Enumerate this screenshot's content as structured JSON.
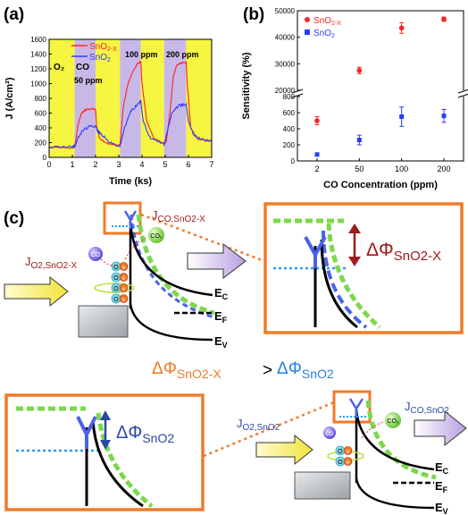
{
  "panels": {
    "a": "(a)",
    "b": "(b)",
    "c": "(c)"
  },
  "colors": {
    "sno2x": "#ff2222",
    "sno2": "#2a3cff",
    "yellow": "#f5f542",
    "purple": "#c8b8e8",
    "orange": "#f07a28",
    "green": "#7cd84a",
    "darkred": "#a01a1a"
  },
  "chart_a": {
    "type": "line",
    "xlabel": "Time (ks)",
    "ylabel": "J (A/cm²)",
    "xlim": [
      0,
      7
    ],
    "ylim": [
      0,
      1600
    ],
    "xticks": [
      "0",
      "1",
      "2",
      "3",
      "4",
      "5",
      "6",
      "7"
    ],
    "yticks": [
      "0",
      "200",
      "400",
      "600",
      "800",
      "1000",
      "1200",
      "1400",
      "1600"
    ],
    "legend": [
      {
        "base": "SnO",
        "sub": "2-X",
        "color": "#ff2222"
      },
      {
        "base": "SnO",
        "sub": "2",
        "color": "#2a3cff"
      }
    ],
    "bands": [
      {
        "start": 0,
        "end": 1.1,
        "gas": "O2"
      },
      {
        "start": 1.1,
        "end": 2.0,
        "gas": "CO"
      },
      {
        "start": 2.0,
        "end": 3.05,
        "gas": "O2"
      },
      {
        "start": 3.05,
        "end": 3.95,
        "gas": "CO"
      },
      {
        "start": 3.95,
        "end": 4.95,
        "gas": "O2"
      },
      {
        "start": 4.95,
        "end": 5.9,
        "gas": "CO"
      },
      {
        "start": 5.9,
        "end": 7.0,
        "gas": "O2"
      }
    ],
    "labels": {
      "o2": "O₂",
      "co": "CO",
      "c50": "50 ppm",
      "c100": "100 ppm",
      "c200": "200 ppm"
    },
    "series": [
      {
        "name": "SnO2-X",
        "color": "#ff2222",
        "x": [
          0,
          1.0,
          1.1,
          1.25,
          1.4,
          1.55,
          1.8,
          2.0,
          2.05,
          2.2,
          2.5,
          2.8,
          3.05,
          3.2,
          3.4,
          3.6,
          3.8,
          3.95,
          4.0,
          4.2,
          4.5,
          4.95,
          5.05,
          5.2,
          5.35,
          5.5,
          5.7,
          5.9,
          5.95,
          6.1,
          6.4,
          7.0
        ],
        "y": [
          130,
          130,
          140,
          450,
          600,
          640,
          660,
          650,
          400,
          250,
          190,
          170,
          170,
          700,
          1000,
          1160,
          1270,
          1300,
          1000,
          500,
          260,
          180,
          220,
          600,
          1100,
          1250,
          1280,
          1290,
          1000,
          400,
          250,
          220
        ]
      },
      {
        "name": "SnO2",
        "color": "#2a3cff",
        "x": [
          0,
          1.0,
          1.1,
          1.3,
          1.5,
          1.75,
          2.0,
          2.1,
          2.3,
          2.6,
          3.05,
          3.2,
          3.5,
          3.75,
          3.95,
          4.05,
          4.3,
          4.6,
          4.95,
          5.05,
          5.3,
          5.6,
          5.9,
          6.0,
          6.2,
          6.5,
          7.0
        ],
        "y": [
          140,
          140,
          150,
          300,
          380,
          420,
          430,
          350,
          300,
          200,
          150,
          350,
          620,
          700,
          760,
          500,
          280,
          220,
          180,
          300,
          620,
          700,
          720,
          500,
          320,
          250,
          220
        ]
      }
    ]
  },
  "chart_b": {
    "type": "scatter",
    "xlabel": "CO Concentration (ppm)",
    "ylabel": "Sensitivity (%)",
    "categories": [
      "2",
      "50",
      "100",
      "200"
    ],
    "yticks_upper": [
      "20000",
      "30000",
      "40000",
      "50000"
    ],
    "yticks_lower": [
      "0",
      "200",
      "400",
      "600",
      "800"
    ],
    "legend": [
      {
        "base": "SnO",
        "sub": "2-X",
        "color": "#ff2222"
      },
      {
        "base": "SnO",
        "sub": "2",
        "color": "#2a3cff"
      }
    ],
    "series": [
      {
        "name": "SnO2-X",
        "color": "#ff2222",
        "values": [
          500,
          27500,
          43500,
          46800
        ],
        "errors": [
          50,
          1200,
          2000,
          800
        ]
      },
      {
        "name": "SnO2",
        "color": "#2a3cff",
        "values": [
          80,
          260,
          550,
          560
        ],
        "errors": [
          15,
          60,
          120,
          80
        ]
      }
    ]
  },
  "diagram": {
    "j_co_sno2x": {
      "base": "J",
      "sub": "CO,SnO2-X"
    },
    "j_o2_sno2x": {
      "base": "J",
      "sub": "O2,SnO2-X"
    },
    "j_co_sno2": {
      "base": "J",
      "sub": "CO,SnO2"
    },
    "j_o2_sno2": {
      "base": "J",
      "sub": "O2,SnO2"
    },
    "ec": "E",
    "ec_sub": "C",
    "ef": "E",
    "ef_sub": "F",
    "ev": "E",
    "ev_sub": "V",
    "co": "CO",
    "co2": "CO₂",
    "o_ion": "O",
    "electron": "e",
    "delta_phi": "ΔΦ",
    "sno2x_sub": "SnO2-X",
    "sno2_sub": "SnO2",
    "greater": ">"
  }
}
